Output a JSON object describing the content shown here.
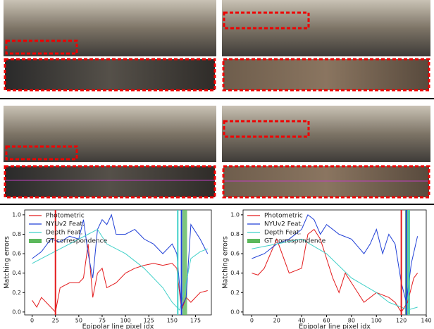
{
  "chart_data": [
    {
      "type": "line",
      "xlabel": "Epipolar line pixel idx",
      "ylabel": "Matching errors",
      "xlim": [
        -8,
        192
      ],
      "ylim": [
        -0.03,
        1.05
      ],
      "xticks": [
        0,
        25,
        50,
        75,
        100,
        125,
        150,
        175
      ],
      "yticks": [
        {
          "value": 0,
          "label": "0.0"
        },
        0.2,
        0.4,
        0.6,
        0.8,
        {
          "value": 1,
          "label": "1.0"
        }
      ],
      "legend": "upper left",
      "series": [
        {
          "name": "Photometric",
          "color": "#e31a1c",
          "x": [
            0,
            5,
            10,
            20,
            25,
            30,
            40,
            50,
            55,
            60,
            65,
            70,
            75,
            80,
            90,
            100,
            110,
            120,
            130,
            140,
            150,
            155,
            160,
            165,
            170,
            180,
            188
          ],
          "values": [
            0.12,
            0.05,
            0.15,
            0.05,
            0.0,
            0.25,
            0.3,
            0.3,
            0.35,
            0.7,
            0.15,
            0.4,
            0.45,
            0.25,
            0.3,
            0.4,
            0.45,
            0.48,
            0.5,
            0.48,
            0.5,
            0.45,
            0.02,
            0.15,
            0.1,
            0.2,
            0.22
          ]
        },
        {
          "name": "NYUv2 Feat.",
          "color": "#1f3fd6",
          "x": [
            0,
            10,
            20,
            30,
            40,
            50,
            55,
            60,
            65,
            70,
            75,
            80,
            85,
            90,
            100,
            110,
            120,
            130,
            140,
            150,
            155,
            160,
            165,
            170,
            180,
            188
          ],
          "values": [
            0.55,
            0.62,
            0.75,
            0.72,
            0.78,
            0.75,
            0.95,
            0.6,
            0.35,
            0.85,
            0.95,
            0.9,
            1.0,
            0.8,
            0.8,
            0.85,
            0.75,
            0.7,
            0.6,
            0.7,
            0.6,
            0.05,
            0.15,
            0.9,
            0.75,
            0.6
          ]
        },
        {
          "name": "Depth Feat.",
          "color": "#3fd0c8",
          "x": [
            0,
            20,
            40,
            60,
            70,
            80,
            100,
            120,
            140,
            150,
            158,
            165,
            170,
            180,
            188
          ],
          "values": [
            0.5,
            0.6,
            0.7,
            0.8,
            0.85,
            0.7,
            0.6,
            0.45,
            0.25,
            0.1,
            0.02,
            0.3,
            0.55,
            0.62,
            0.65
          ]
        }
      ],
      "gt": {
        "name": "GT correspondence",
        "color": "#5cb85c",
        "range": [
          161,
          166
        ]
      },
      "vlines": [
        {
          "x": 25,
          "color": "#e31a1c"
        },
        {
          "x": 156,
          "color": "#3fd0c8"
        },
        {
          "x": 160,
          "color": "#1f3fd6"
        }
      ]
    },
    {
      "type": "line",
      "xlabel": "Epipolar line pixel idx",
      "ylabel": "Matching errors",
      "xlim": [
        -7,
        140
      ],
      "ylim": [
        -0.03,
        1.05
      ],
      "xticks": [
        0,
        20,
        40,
        60,
        80,
        100,
        120,
        140
      ],
      "yticks": [
        {
          "value": 0,
          "label": "0.0"
        },
        0.2,
        0.4,
        0.6,
        0.8,
        {
          "value": 1,
          "label": "1.0"
        }
      ],
      "legend": "upper left",
      "series": [
        {
          "name": "Photometric",
          "color": "#e31a1c",
          "x": [
            0,
            5,
            10,
            15,
            20,
            30,
            40,
            45,
            50,
            55,
            60,
            65,
            70,
            75,
            80,
            90,
            100,
            110,
            115,
            120,
            125,
            130,
            133
          ],
          "values": [
            0.4,
            0.38,
            0.45,
            0.6,
            0.75,
            0.4,
            0.45,
            0.8,
            0.85,
            0.75,
            0.55,
            0.35,
            0.2,
            0.4,
            0.3,
            0.1,
            0.2,
            0.15,
            0.1,
            0.0,
            0.1,
            0.35,
            0.4
          ]
        },
        {
          "name": "NYUv2 Feat.",
          "color": "#1f3fd6",
          "x": [
            0,
            10,
            20,
            30,
            40,
            45,
            50,
            55,
            60,
            70,
            80,
            90,
            95,
            100,
            105,
            110,
            115,
            120,
            124,
            128,
            133
          ],
          "values": [
            0.55,
            0.6,
            0.7,
            0.75,
            0.85,
            1.0,
            0.95,
            0.8,
            0.9,
            0.8,
            0.75,
            0.6,
            0.7,
            0.85,
            0.6,
            0.8,
            0.7,
            0.3,
            0.1,
            0.5,
            0.78
          ]
        },
        {
          "name": "Depth Feat.",
          "color": "#3fd0c8",
          "x": [
            0,
            20,
            40,
            60,
            80,
            100,
            110,
            120,
            125,
            133
          ],
          "values": [
            0.65,
            0.7,
            0.75,
            0.6,
            0.35,
            0.2,
            0.1,
            0.05,
            0.02,
            0.05
          ]
        }
      ],
      "gt": {
        "name": "GT correspondence",
        "color": "#5cb85c",
        "range": [
          123,
          127
        ]
      },
      "vlines": [
        {
          "x": 120,
          "color": "#e31a1c"
        },
        {
          "x": 124,
          "color": "#1f3fd6"
        },
        {
          "x": 126,
          "color": "#3fd0c8"
        }
      ]
    }
  ]
}
